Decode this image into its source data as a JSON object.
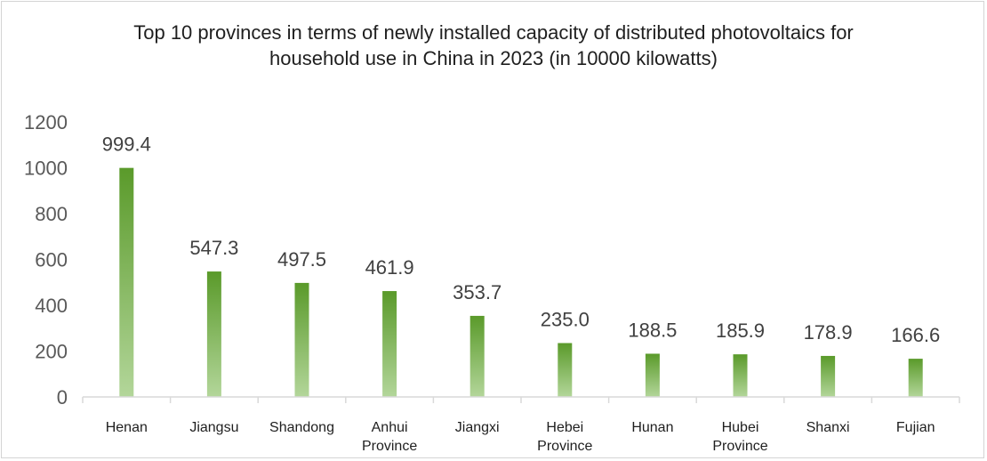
{
  "chart_data": {
    "type": "bar",
    "title_lines": [
      "Top 10 provinces in terms of newly installed capacity of distributed photovoltaics for",
      "household use in China in 2023 (in 10000 kilowatts)"
    ],
    "categories": [
      [
        "Henan"
      ],
      [
        "Jiangsu"
      ],
      [
        "Shandong"
      ],
      [
        "Anhui",
        "Province"
      ],
      [
        "Jiangxi"
      ],
      [
        "Hebei",
        "Province"
      ],
      [
        "Hunan"
      ],
      [
        "Hubei",
        "Province"
      ],
      [
        "Shanxi"
      ],
      [
        "Fujian"
      ]
    ],
    "values": [
      999.4,
      547.3,
      497.5,
      461.9,
      353.7,
      235.0,
      188.5,
      185.9,
      178.9,
      166.6
    ],
    "data_labels": [
      "999.4",
      "547.3",
      "497.5",
      "461.9",
      "353.7",
      "235.0",
      "188.5",
      "185.9",
      "178.9",
      "166.6"
    ],
    "yticks": [
      0,
      200,
      400,
      600,
      800,
      1000,
      1200
    ],
    "ylim": [
      0,
      1200
    ],
    "grid": false,
    "legend": "none",
    "colors": {
      "bar_top": "#5a9a2a",
      "bar_bottom": "#b3d69a",
      "axis": "#d9d9d9"
    }
  }
}
